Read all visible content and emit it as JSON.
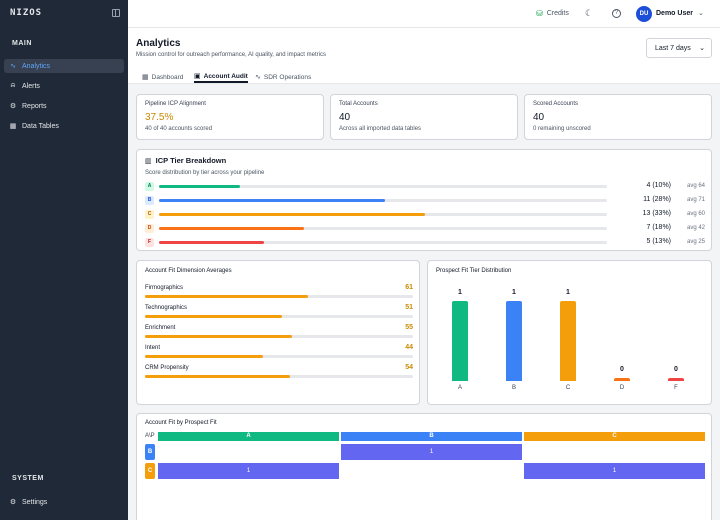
{
  "sidebar": {
    "logo": "NIZOS",
    "main_label": "MAIN",
    "items": [
      {
        "label": "Analytics",
        "icon": "chart-line-icon",
        "glyph": "∿",
        "active": true
      },
      {
        "label": "Alerts",
        "icon": "bell-icon",
        "glyph": "⍾",
        "active": false
      },
      {
        "label": "Reports",
        "icon": "gear-icon",
        "glyph": "⚙",
        "active": false
      },
      {
        "label": "Data Tables",
        "icon": "table-icon",
        "glyph": "▦",
        "active": false
      }
    ],
    "system_label": "SYSTEM",
    "settings_label": "Settings"
  },
  "topbar": {
    "credits_label": "Credits",
    "avatar_initials": "DU",
    "user_name": "Demo User"
  },
  "header": {
    "title": "Analytics",
    "subtitle": "Mission control for outreach performance, AI quality, and impact metrics",
    "range_value": "Last 7 days"
  },
  "tabs": [
    {
      "label": "Dashboard",
      "icon": "grid-icon",
      "glyph": "▦"
    },
    {
      "label": "Account Audit",
      "icon": "clipboard-icon",
      "glyph": "▣"
    },
    {
      "label": "SDR Operations",
      "icon": "pulse-icon",
      "glyph": "∿"
    }
  ],
  "stats": [
    {
      "label": "Pipeline ICP Alignment",
      "value": "37.5%",
      "sub": "40 of 40 accounts scored"
    },
    {
      "label": "Total Accounts",
      "value": "40",
      "sub": "Across all imported data tables"
    },
    {
      "label": "Scored Accounts",
      "value": "40",
      "sub": "0 remaining unscored"
    }
  ],
  "icp": {
    "title": "ICP Tier Breakdown",
    "subtitle": "Score distribution by tier across your pipeline",
    "tiers": [
      {
        "tier": "A",
        "count": "4 (10%)",
        "avg": "avg 64",
        "fraction": 0.1,
        "color": "#10b981",
        "badge_bg": "#d1fae5",
        "badge_fg": "#047857"
      },
      {
        "tier": "B",
        "count": "11 (28%)",
        "avg": "avg 71",
        "fraction": 0.28,
        "color": "#3b82f6",
        "badge_bg": "#dbeafe",
        "badge_fg": "#1d4ed8"
      },
      {
        "tier": "C",
        "count": "13 (33%)",
        "avg": "avg 60",
        "fraction": 0.33,
        "color": "#f59e0b",
        "badge_bg": "#fef3c7",
        "badge_fg": "#b45309"
      },
      {
        "tier": "D",
        "count": "7 (18%)",
        "avg": "avg 42",
        "fraction": 0.18,
        "color": "#f97316",
        "badge_bg": "#ffedd5",
        "badge_fg": "#c2410c"
      },
      {
        "tier": "F",
        "count": "5 (13%)",
        "avg": "avg 25",
        "fraction": 0.13,
        "color": "#ef4444",
        "badge_bg": "#fee2e2",
        "badge_fg": "#b91c1c"
      }
    ]
  },
  "dimensions": {
    "title": "Account Fit Dimension Averages",
    "items": [
      {
        "label": "Firmographics",
        "value": "61",
        "fraction": 0.61
      },
      {
        "label": "Technographics",
        "value": "51",
        "fraction": 0.51
      },
      {
        "label": "Enrichment",
        "value": "55",
        "fraction": 0.55
      },
      {
        "label": "Intent",
        "value": "44",
        "fraction": 0.44
      },
      {
        "label": "CRM Propensity",
        "value": "54",
        "fraction": 0.54
      }
    ]
  },
  "prospect": {
    "title": "Prospect Fit Tier Distribution"
  },
  "chart_data": {
    "type": "bar",
    "title": "Prospect Fit Tier Distribution",
    "categories": [
      "A",
      "B",
      "C",
      "D",
      "F"
    ],
    "values": [
      1,
      1,
      1,
      0,
      0
    ],
    "colors": [
      "#10b981",
      "#3b82f6",
      "#f59e0b",
      "#f97316",
      "#ef4444"
    ],
    "ylim": [
      0,
      1
    ],
    "grid": false,
    "xlabel": "",
    "ylabel": ""
  },
  "matrix": {
    "title": "Account Fit by Prospect Fit",
    "corner": "A\\P",
    "columns": [
      {
        "label": "A",
        "color": "#10b981"
      },
      {
        "label": "B",
        "color": "#3b82f6"
      },
      {
        "label": "C",
        "color": "#f59e0b"
      }
    ],
    "rows": [
      {
        "label": "B",
        "color": "#3b82f6",
        "cells": [
          "",
          "1",
          ""
        ]
      },
      {
        "label": "C",
        "color": "#f59e0b",
        "cells": [
          "1",
          "",
          "1"
        ]
      }
    ]
  }
}
